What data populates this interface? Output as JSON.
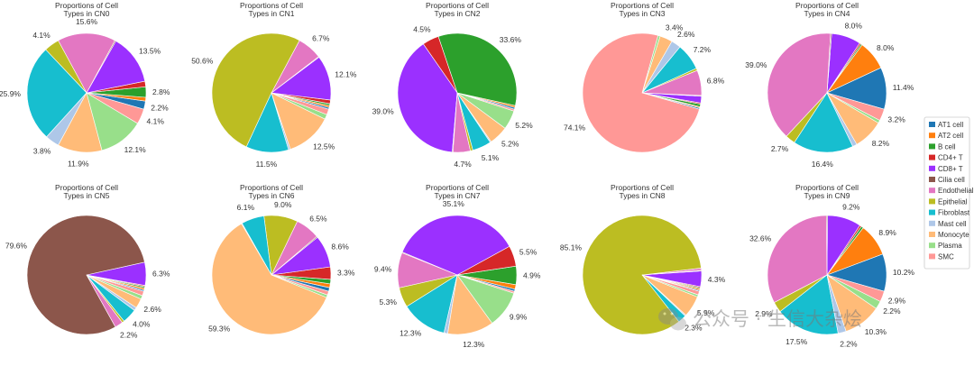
{
  "palette": {
    "AT1 cell": "#1f77b4",
    "AT2 cell": "#ff7f0e",
    "B cell": "#2ca02c",
    "CD4+ T": "#d62728",
    "CD8+ T": "#9b30ff",
    "Cilia cell": "#8c564b",
    "Endothelial": "#e377c2",
    "Epithelial": "#bcbd22",
    "Fibroblast": "#17becf",
    "Mast cell": "#aec7e8",
    "Monocyte": "#ffbb78",
    "Plasma": "#98df8a",
    "SMC": "#ff9896"
  },
  "legend": {
    "items": [
      "AT1 cell",
      "AT2 cell",
      "B cell",
      "CD4+ T",
      "CD8+ T",
      "Cilia cell",
      "Endothelial",
      "Epithelial",
      "Fibroblast",
      "Mast cell",
      "Monocyte",
      "Plasma",
      "SMC"
    ]
  },
  "watermark": {
    "text": "公众号 · 生信大杂烩"
  },
  "chart_data": [
    {
      "type": "pie",
      "title": "Proportions of Cell\nTypes in CN0",
      "slices": [
        {
          "category": "AT1 cell",
          "value": 2.2,
          "label": "2.2%"
        },
        {
          "category": "AT2 cell",
          "value": 1.0,
          "label": ""
        },
        {
          "category": "B cell",
          "value": 2.8,
          "label": "2.8%"
        },
        {
          "category": "CD4+ T",
          "value": 1.5,
          "label": ""
        },
        {
          "category": "CD8+ T",
          "value": 13.5,
          "label": "13.5%"
        },
        {
          "category": "Cilia cell",
          "value": 0.3,
          "label": ""
        },
        {
          "category": "Endothelial",
          "value": 15.6,
          "label": "15.6%"
        },
        {
          "category": "Epithelial",
          "value": 4.1,
          "label": "4.1%"
        },
        {
          "category": "Fibroblast",
          "value": 25.9,
          "label": "25.9%"
        },
        {
          "category": "Mast cell",
          "value": 3.8,
          "label": "3.8%"
        },
        {
          "category": "Monocyte",
          "value": 11.9,
          "label": "11.9%"
        },
        {
          "category": "Plasma",
          "value": 12.1,
          "label": "12.1%"
        },
        {
          "category": "SMC",
          "value": 4.1,
          "label": "4.1%"
        }
      ]
    },
    {
      "type": "pie",
      "title": "Proportions of Cell\nTypes in CN1",
      "slices": [
        {
          "category": "AT1 cell",
          "value": 0.5,
          "label": ""
        },
        {
          "category": "AT2 cell",
          "value": 0.5,
          "label": ""
        },
        {
          "category": "B cell",
          "value": 0.5,
          "label": ""
        },
        {
          "category": "CD4+ T",
          "value": 1.0,
          "label": ""
        },
        {
          "category": "CD8+ T",
          "value": 12.1,
          "label": "12.1%"
        },
        {
          "category": "Cilia cell",
          "value": 0.2,
          "label": ""
        },
        {
          "category": "Endothelial",
          "value": 6.7,
          "label": "6.7%"
        },
        {
          "category": "Epithelial",
          "value": 50.6,
          "label": "50.6%"
        },
        {
          "category": "Fibroblast",
          "value": 11.5,
          "label": "11.5%"
        },
        {
          "category": "Mast cell",
          "value": 0.5,
          "label": ""
        },
        {
          "category": "Monocyte",
          "value": 12.5,
          "label": "12.5%"
        },
        {
          "category": "Plasma",
          "value": 1.3,
          "label": ""
        },
        {
          "category": "SMC",
          "value": 1.5,
          "label": ""
        }
      ]
    },
    {
      "type": "pie",
      "title": "Proportions of Cell\nTypes in CN2",
      "slices": [
        {
          "category": "AT1 cell",
          "value": 0.5,
          "label": ""
        },
        {
          "category": "AT2 cell",
          "value": 0.5,
          "label": ""
        },
        {
          "category": "B cell",
          "value": 33.6,
          "label": "33.6%"
        },
        {
          "category": "CD4+ T",
          "value": 4.5,
          "label": "4.5%"
        },
        {
          "category": "CD8+ T",
          "value": 39.0,
          "label": "39.0%"
        },
        {
          "category": "Cilia cell",
          "value": 0.2,
          "label": ""
        },
        {
          "category": "Endothelial",
          "value": 4.7,
          "label": "4.7%"
        },
        {
          "category": "Epithelial",
          "value": 0.7,
          "label": ""
        },
        {
          "category": "Fibroblast",
          "value": 5.1,
          "label": "5.1%"
        },
        {
          "category": "Mast cell",
          "value": 0.3,
          "label": ""
        },
        {
          "category": "Monocyte",
          "value": 5.2,
          "label": "5.2%"
        },
        {
          "category": "Plasma",
          "value": 5.2,
          "label": "5.2%"
        },
        {
          "category": "SMC",
          "value": 0.5,
          "label": ""
        }
      ]
    },
    {
      "type": "pie",
      "title": "Proportions of Cell\nTypes in CN3",
      "slices": [
        {
          "category": "AT1 cell",
          "value": 0.4,
          "label": ""
        },
        {
          "category": "AT2 cell",
          "value": 0.3,
          "label": ""
        },
        {
          "category": "B cell",
          "value": 0.7,
          "label": ""
        },
        {
          "category": "CD4+ T",
          "value": 0.3,
          "label": ""
        },
        {
          "category": "CD8+ T",
          "value": 1.8,
          "label": ""
        },
        {
          "category": "Cilia cell",
          "value": 0.2,
          "label": ""
        },
        {
          "category": "Endothelial",
          "value": 6.8,
          "label": "6.8%"
        },
        {
          "category": "Epithelial",
          "value": 0.6,
          "label": ""
        },
        {
          "category": "Fibroblast",
          "value": 7.2,
          "label": "7.2%"
        },
        {
          "category": "Mast cell",
          "value": 2.6,
          "label": "2.6%"
        },
        {
          "category": "Monocyte",
          "value": 3.4,
          "label": "3.4%"
        },
        {
          "category": "Plasma",
          "value": 0.6,
          "label": ""
        },
        {
          "category": "SMC",
          "value": 74.1,
          "label": "74.1%"
        }
      ]
    },
    {
      "type": "pie",
      "title": "Proportions of Cell\nTypes in CN4",
      "slices": [
        {
          "category": "AT1 cell",
          "value": 11.4,
          "label": "11.4%"
        },
        {
          "category": "AT2 cell",
          "value": 8.0,
          "label": "8.0%"
        },
        {
          "category": "B cell",
          "value": 0.4,
          "label": ""
        },
        {
          "category": "CD4+ T",
          "value": 0.4,
          "label": ""
        },
        {
          "category": "CD8+ T",
          "value": 8.0,
          "label": "8.0%"
        },
        {
          "category": "Cilia cell",
          "value": 0.3,
          "label": ""
        },
        {
          "category": "Endothelial",
          "value": 39.0,
          "label": "39.0%"
        },
        {
          "category": "Epithelial",
          "value": 2.7,
          "label": "2.7%"
        },
        {
          "category": "Fibroblast",
          "value": 16.4,
          "label": "16.4%"
        },
        {
          "category": "Mast cell",
          "value": 1.2,
          "label": ""
        },
        {
          "category": "Monocyte",
          "value": 8.2,
          "label": "8.2%"
        },
        {
          "category": "Plasma",
          "value": 0.8,
          "label": ""
        },
        {
          "category": "SMC",
          "value": 3.2,
          "label": "3.2%"
        }
      ]
    },
    {
      "type": "pie",
      "title": "Proportions of Cell\nTypes in CN5",
      "slices": [
        {
          "category": "AT1 cell",
          "value": 0.4,
          "label": ""
        },
        {
          "category": "AT2 cell",
          "value": 0.5,
          "label": ""
        },
        {
          "category": "B cell",
          "value": 0.4,
          "label": ""
        },
        {
          "category": "CD4+ T",
          "value": 0.3,
          "label": ""
        },
        {
          "category": "CD8+ T",
          "value": 6.3,
          "label": "6.3%"
        },
        {
          "category": "Cilia cell",
          "value": 79.6,
          "label": "79.6%"
        },
        {
          "category": "Endothelial",
          "value": 2.2,
          "label": "2.2%"
        },
        {
          "category": "Epithelial",
          "value": 0.6,
          "label": ""
        },
        {
          "category": "Fibroblast",
          "value": 4.0,
          "label": "4.0%"
        },
        {
          "category": "Mast cell",
          "value": 0.9,
          "label": ""
        },
        {
          "category": "Monocyte",
          "value": 2.6,
          "label": "2.6%"
        },
        {
          "category": "Plasma",
          "value": 1.0,
          "label": ""
        },
        {
          "category": "SMC",
          "value": 1.2,
          "label": ""
        }
      ]
    },
    {
      "type": "pie",
      "title": "Proportions of Cell\nTypes in CN6",
      "slices": [
        {
          "category": "AT1 cell",
          "value": 1.0,
          "label": ""
        },
        {
          "category": "AT2 cell",
          "value": 1.0,
          "label": ""
        },
        {
          "category": "B cell",
          "value": 1.2,
          "label": ""
        },
        {
          "category": "CD4+ T",
          "value": 3.3,
          "label": "3.3%"
        },
        {
          "category": "CD8+ T",
          "value": 8.6,
          "label": "8.6%"
        },
        {
          "category": "Cilia cell",
          "value": 0.3,
          "label": ""
        },
        {
          "category": "Endothelial",
          "value": 6.5,
          "label": "6.5%"
        },
        {
          "category": "Epithelial",
          "value": 9.0,
          "label": "9.0%"
        },
        {
          "category": "Fibroblast",
          "value": 6.1,
          "label": "6.1%"
        },
        {
          "category": "Mast cell",
          "value": 0.2,
          "label": ""
        },
        {
          "category": "Monocyte",
          "value": 59.3,
          "label": "59.3%"
        },
        {
          "category": "Plasma",
          "value": 0.7,
          "label": ""
        },
        {
          "category": "SMC",
          "value": 1.0,
          "label": ""
        }
      ]
    },
    {
      "type": "pie",
      "title": "Proportions of Cell\nTypes in CN7",
      "slices": [
        {
          "category": "AT1 cell",
          "value": 0.6,
          "label": ""
        },
        {
          "category": "AT2 cell",
          "value": 1.2,
          "label": ""
        },
        {
          "category": "B cell",
          "value": 4.9,
          "label": "4.9%"
        },
        {
          "category": "CD4+ T",
          "value": 5.5,
          "label": "5.5%"
        },
        {
          "category": "CD8+ T",
          "value": 35.1,
          "label": "35.1%"
        },
        {
          "category": "Cilia cell",
          "value": 0.2,
          "label": ""
        },
        {
          "category": "Endothelial",
          "value": 9.4,
          "label": "9.4%"
        },
        {
          "category": "Epithelial",
          "value": 5.3,
          "label": "5.3%"
        },
        {
          "category": "Fibroblast",
          "value": 12.3,
          "label": "12.3%"
        },
        {
          "category": "Mast cell",
          "value": 1.0,
          "label": ""
        },
        {
          "category": "Monocyte",
          "value": 12.3,
          "label": "12.3%"
        },
        {
          "category": "Plasma",
          "value": 9.9,
          "label": "9.9%"
        },
        {
          "category": "SMC",
          "value": 0.5,
          "label": ""
        }
      ]
    },
    {
      "type": "pie",
      "title": "Proportions of Cell\nTypes in CN8",
      "slices": [
        {
          "category": "AT1 cell",
          "value": 0.3,
          "label": ""
        },
        {
          "category": "AT2 cell",
          "value": 0.4,
          "label": ""
        },
        {
          "category": "B cell",
          "value": 0.3,
          "label": ""
        },
        {
          "category": "CD4+ T",
          "value": 0.3,
          "label": ""
        },
        {
          "category": "CD8+ T",
          "value": 4.3,
          "label": "4.3%"
        },
        {
          "category": "Cilia cell",
          "value": 0.2,
          "label": ""
        },
        {
          "category": "Endothelial",
          "value": 0.6,
          "label": ""
        },
        {
          "category": "Epithelial",
          "value": 85.1,
          "label": "85.1%"
        },
        {
          "category": "Fibroblast",
          "value": 2.3,
          "label": "2.3%"
        },
        {
          "category": "Mast cell",
          "value": 0.3,
          "label": ""
        },
        {
          "category": "Monocyte",
          "value": 5.9,
          "label": "5.9%"
        },
        {
          "category": "Plasma",
          "value": 0.6,
          "label": ""
        },
        {
          "category": "SMC",
          "value": 1.0,
          "label": ""
        }
      ]
    },
    {
      "type": "pie",
      "title": "Proportions of Cell\nTypes in CN9",
      "slices": [
        {
          "category": "AT1 cell",
          "value": 10.2,
          "label": "10.2%"
        },
        {
          "category": "AT2 cell",
          "value": 8.9,
          "label": "8.9%"
        },
        {
          "category": "B cell",
          "value": 0.6,
          "label": ""
        },
        {
          "category": "CD4+ T",
          "value": 0.5,
          "label": ""
        },
        {
          "category": "CD8+ T",
          "value": 9.2,
          "label": "9.2%"
        },
        {
          "category": "Cilia cell",
          "value": 0.3,
          "label": ""
        },
        {
          "category": "Endothelial",
          "value": 32.6,
          "label": "32.6%"
        },
        {
          "category": "Epithelial",
          "value": 2.9,
          "label": "2.9%"
        },
        {
          "category": "Fibroblast",
          "value": 17.5,
          "label": "17.5%"
        },
        {
          "category": "Mast cell",
          "value": 2.2,
          "label": "2.2%"
        },
        {
          "category": "Monocyte",
          "value": 10.3,
          "label": "10.3%"
        },
        {
          "category": "Plasma",
          "value": 2.2,
          "label": "2.2%"
        },
        {
          "category": "SMC",
          "value": 2.9,
          "label": "2.9%"
        }
      ]
    }
  ]
}
